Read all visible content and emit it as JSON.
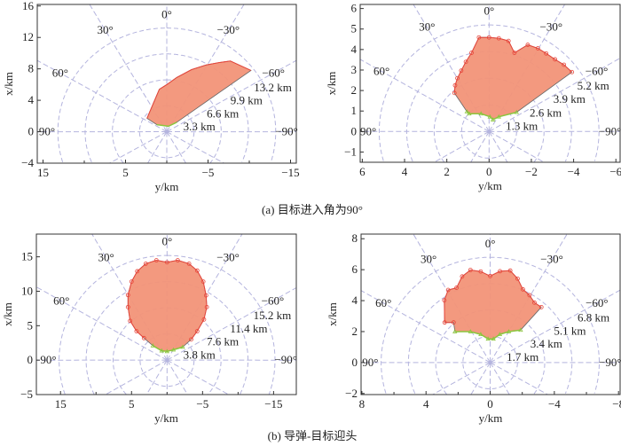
{
  "captions": [
    "(a) 目标进入角为90°",
    "(b) 导弹-目标迎头"
  ],
  "colors": {
    "fill": "#f29478",
    "edge": "#e8453a",
    "lower_edge": "#8cc63e",
    "grid": "#b4b4de",
    "frame": "#333333"
  },
  "chart_data": [
    {
      "type": "area",
      "coordinate": "polar-overlay",
      "xlabel": "y/km",
      "ylabel": "x/km",
      "xlim": [
        15.7,
        -15.7
      ],
      "ylim": [
        -4,
        16.2
      ],
      "xticks": [
        15,
        5,
        -5,
        -15
      ],
      "xminor": [
        10,
        0,
        -10
      ],
      "yticks": [
        -4,
        0,
        4,
        8,
        12,
        16
      ],
      "rings": [
        3.3,
        6.6,
        9.9,
        13.2
      ],
      "ring_labels": [
        "3.3 km",
        "6.6 km",
        "9.9 km",
        "13.2 km"
      ],
      "angle_labels": {
        "0": "0°",
        "30": "30°",
        "-30": "−30°",
        "60": "60°",
        "-60": "−60°",
        "90": "90°",
        "-90": "−90°"
      },
      "markers": false,
      "upper": [
        [
          2.4,
          1.7
        ],
        [
          1.8,
          3.2
        ],
        [
          0.9,
          5.4
        ],
        [
          0,
          6.0
        ],
        [
          -1.2,
          6.9
        ],
        [
          -3.0,
          7.9
        ],
        [
          -4.8,
          8.5
        ],
        [
          -6.3,
          8.8
        ],
        [
          -7.7,
          9.0
        ],
        [
          -10.2,
          7.8
        ]
      ],
      "lower": [
        [
          -1.2,
          1.2
        ],
        [
          -0.2,
          0.7
        ],
        [
          1.2,
          0.9
        ]
      ]
    },
    {
      "type": "area",
      "coordinate": "polar-overlay",
      "xlabel": "y/km",
      "ylabel": "x/km",
      "xlim": [
        6.1,
        -6.2
      ],
      "ylim": [
        -1.5,
        6.2
      ],
      "xticks": [
        6,
        4,
        2,
        0,
        -2,
        -4,
        -6
      ],
      "xminor": [],
      "yticks": [
        -1,
        0,
        1,
        2,
        3,
        4,
        5,
        6
      ],
      "rings": [
        1.3,
        2.6,
        3.9,
        5.2
      ],
      "ring_labels": [
        "1.3 km",
        "2.6 km",
        "3.9 km",
        "5.2 km"
      ],
      "angle_labels": {
        "0": "0°",
        "30": "30°",
        "-30": "−30°",
        "60": "60°",
        "-60": "−60°",
        "90": "90°",
        "-90": "−90°"
      },
      "markers": true,
      "upper": [
        [
          1.64,
          1.88
        ],
        [
          1.61,
          2.25
        ],
        [
          1.5,
          2.6
        ],
        [
          1.32,
          2.97
        ],
        [
          1.1,
          3.4
        ],
        [
          0.83,
          3.84
        ],
        [
          0.48,
          4.59
        ],
        [
          0,
          4.59
        ],
        [
          -0.46,
          4.55
        ],
        [
          -0.92,
          4.42
        ],
        [
          -1.2,
          3.84
        ],
        [
          -1.83,
          4.23
        ],
        [
          -2.31,
          4.06
        ],
        [
          -2.7,
          3.81
        ],
        [
          -3.12,
          3.52
        ],
        [
          -3.54,
          3.26
        ],
        [
          -3.92,
          2.9
        ]
      ],
      "lower": [
        [
          -1.3,
          0.94
        ],
        [
          -0.46,
          0.72
        ],
        [
          -0.18,
          0.58
        ],
        [
          -0.04,
          0.72
        ],
        [
          0.38,
          0.87
        ],
        [
          0.94,
          0.87
        ],
        [
          1.05,
          0.97
        ]
      ]
    },
    {
      "type": "area",
      "coordinate": "polar-overlay",
      "xlabel": "y/km",
      "ylabel": "x/km",
      "xlim": [
        18.4,
        -18.2
      ],
      "ylim": [
        -5,
        18.3
      ],
      "xticks": [
        15,
        5,
        -5,
        -15
      ],
      "xminor": [
        10,
        0,
        -10
      ],
      "yticks": [
        -5,
        0,
        5,
        10,
        15
      ],
      "rings": [
        3.8,
        7.6,
        11.4,
        15.2
      ],
      "ring_labels": [
        "3.8 km",
        "7.6 km",
        "11.4 km",
        "15.2 km"
      ],
      "angle_labels": {
        "0": "0°",
        "30": "30°",
        "-30": "−30°",
        "60": "60°",
        "-60": "−60°",
        "90": "90°",
        "-90": "−90°"
      },
      "markers": true,
      "upper": [
        [
          3.25,
          3.2
        ],
        [
          4.3,
          4.2
        ],
        [
          5.2,
          5.7
        ],
        [
          5.5,
          7.7
        ],
        [
          5.5,
          9.45
        ],
        [
          5.0,
          11.4
        ],
        [
          4.2,
          12.9
        ],
        [
          3.0,
          14.0
        ],
        [
          1.5,
          14.5
        ],
        [
          0,
          14.2
        ],
        [
          -1.5,
          14.5
        ],
        [
          -3.1,
          14.0
        ],
        [
          -4.25,
          13.0
        ],
        [
          -5.1,
          11.4
        ],
        [
          -5.5,
          9.4
        ],
        [
          -5.6,
          7.7
        ],
        [
          -5.2,
          5.9
        ],
        [
          -4.25,
          4.2
        ],
        [
          -3.4,
          3.0
        ]
      ],
      "lower": [
        [
          -2.2,
          1.9
        ],
        [
          -0.9,
          1.5
        ],
        [
          0,
          1.27
        ],
        [
          0.75,
          1.36
        ],
        [
          2.0,
          2.1
        ]
      ]
    },
    {
      "type": "area",
      "coordinate": "polar-overlay",
      "xlabel": "y/km",
      "ylabel": "x/km",
      "xlim": [
        8.05,
        -8.1
      ],
      "ylim": [
        -2.07,
        8.3
      ],
      "xticks": [
        8,
        4,
        0,
        -4,
        -8
      ],
      "xminor": [
        6,
        2,
        -2,
        -6
      ],
      "yticks": [
        -2,
        0,
        2,
        4,
        6,
        8
      ],
      "rings": [
        1.7,
        3.4,
        5.1,
        6.8
      ],
      "ring_labels": [
        "1.7 km",
        "3.4 km",
        "5.1 km",
        "6.8 km"
      ],
      "angle_labels": {
        "0": "0°",
        "30": "30°",
        "-30": "−30°",
        "60": "60°",
        "-60": "−60°",
        "90": "90°",
        "-90": "−90°"
      },
      "markers": true,
      "upper": [
        [
          2.28,
          2.59
        ],
        [
          2.84,
          2.59
        ],
        [
          2.86,
          4.02
        ],
        [
          2.62,
          4.69
        ],
        [
          2.1,
          4.83
        ],
        [
          1.75,
          5.56
        ],
        [
          1.23,
          5.98
        ],
        [
          0.59,
          5.88
        ],
        [
          0,
          5.59
        ],
        [
          -0.61,
          5.9
        ],
        [
          -1.25,
          5.94
        ],
        [
          -1.71,
          5.42
        ],
        [
          -2.04,
          4.73
        ],
        [
          -2.45,
          4.35
        ],
        [
          -2.76,
          3.87
        ],
        [
          -3.19,
          3.58
        ]
      ],
      "lower": [
        [
          -1.9,
          2.1
        ],
        [
          -1.16,
          2.0
        ],
        [
          -0.6,
          1.82
        ],
        [
          -0.2,
          1.53
        ],
        [
          0.13,
          1.53
        ],
        [
          0.59,
          1.82
        ],
        [
          1.23,
          2.0
        ],
        [
          2.2,
          2.0
        ]
      ]
    }
  ]
}
